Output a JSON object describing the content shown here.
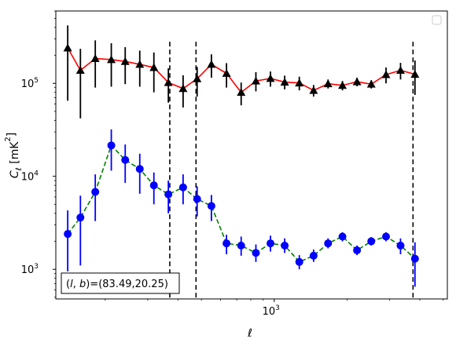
{
  "chart_data": {
    "type": "scatter",
    "xlabel": "ℓ",
    "ylabel": "Cℓ [mK²]",
    "x_scale": "log",
    "y_scale": "log",
    "xlim": [
      125,
      5200
    ],
    "ylim": [
      480,
      600000
    ],
    "x_ticks": [
      {
        "value": 1000,
        "label": "10",
        "exp": "3"
      }
    ],
    "y_ticks": [
      {
        "value": 1000,
        "label": "10",
        "exp": "3"
      },
      {
        "value": 10000,
        "label": "10",
        "exp": "4"
      },
      {
        "value": 100000,
        "label": "10",
        "exp": "5"
      }
    ],
    "annotation": "(l,b)=(83.49,20.25)",
    "vlines": [
      370,
      475,
      3750
    ],
    "legend_placement": "top-right",
    "series": [
      {
        "marker": "triangle",
        "marker_color": "#000000",
        "line_color": "#ff0000",
        "line_style": "solid",
        "errorbar_color": "#000000",
        "points": [
          {
            "x": 140,
            "y": 240000,
            "lo": 65000,
            "hi": 420000
          },
          {
            "x": 158,
            "y": 138000,
            "lo": 42000,
            "hi": 235000
          },
          {
            "x": 182,
            "y": 185000,
            "lo": 90000,
            "hi": 290000
          },
          {
            "x": 212,
            "y": 180000,
            "lo": 92000,
            "hi": 270000
          },
          {
            "x": 242,
            "y": 172000,
            "lo": 98000,
            "hi": 245000
          },
          {
            "x": 278,
            "y": 160000,
            "lo": 92000,
            "hi": 225000
          },
          {
            "x": 318,
            "y": 148000,
            "lo": 80000,
            "hi": 215000
          },
          {
            "x": 365,
            "y": 102000,
            "lo": 62000,
            "hi": 145000
          },
          {
            "x": 420,
            "y": 88000,
            "lo": 55000,
            "hi": 122000
          },
          {
            "x": 480,
            "y": 112000,
            "lo": 72000,
            "hi": 150000
          },
          {
            "x": 550,
            "y": 160000,
            "lo": 115000,
            "hi": 205000
          },
          {
            "x": 635,
            "y": 128000,
            "lo": 90000,
            "hi": 165000
          },
          {
            "x": 730,
            "y": 80000,
            "lo": 58000,
            "hi": 102000
          },
          {
            "x": 840,
            "y": 106000,
            "lo": 82000,
            "hi": 132000
          },
          {
            "x": 965,
            "y": 113000,
            "lo": 92000,
            "hi": 134000
          },
          {
            "x": 1105,
            "y": 103000,
            "lo": 86000,
            "hi": 121000
          },
          {
            "x": 1270,
            "y": 101000,
            "lo": 84000,
            "hi": 118000
          },
          {
            "x": 1455,
            "y": 84000,
            "lo": 72000,
            "hi": 96000
          },
          {
            "x": 1670,
            "y": 99000,
            "lo": 88000,
            "hi": 110000
          },
          {
            "x": 1915,
            "y": 95000,
            "lo": 84000,
            "hi": 106000
          },
          {
            "x": 2200,
            "y": 104000,
            "lo": 93000,
            "hi": 115000
          },
          {
            "x": 2520,
            "y": 98000,
            "lo": 88000,
            "hi": 108000
          },
          {
            "x": 2900,
            "y": 124000,
            "lo": 100000,
            "hi": 148000
          },
          {
            "x": 3330,
            "y": 138000,
            "lo": 110000,
            "hi": 166000
          },
          {
            "x": 3820,
            "y": 125000,
            "lo": 75000,
            "hi": 176000
          }
        ]
      },
      {
        "marker": "circle",
        "marker_color": "#0000ff",
        "line_color": "#008000",
        "line_style": "dashed",
        "errorbar_color": "#0000ff",
        "points": [
          {
            "x": 140,
            "y": 2400,
            "lo": 950,
            "hi": 4300
          },
          {
            "x": 158,
            "y": 3600,
            "lo": 1100,
            "hi": 6200
          },
          {
            "x": 182,
            "y": 6800,
            "lo": 3300,
            "hi": 10500
          },
          {
            "x": 212,
            "y": 21500,
            "lo": 11500,
            "hi": 32000
          },
          {
            "x": 242,
            "y": 15000,
            "lo": 8500,
            "hi": 22000
          },
          {
            "x": 278,
            "y": 12000,
            "lo": 6500,
            "hi": 17500
          },
          {
            "x": 318,
            "y": 8000,
            "lo": 5000,
            "hi": 11000
          },
          {
            "x": 365,
            "y": 6400,
            "lo": 4000,
            "hi": 9000
          },
          {
            "x": 420,
            "y": 7600,
            "lo": 5000,
            "hi": 10500
          },
          {
            "x": 480,
            "y": 5700,
            "lo": 3700,
            "hi": 7800
          },
          {
            "x": 550,
            "y": 4800,
            "lo": 3300,
            "hi": 6300
          },
          {
            "x": 635,
            "y": 1900,
            "lo": 1450,
            "hi": 2350
          },
          {
            "x": 730,
            "y": 1800,
            "lo": 1400,
            "hi": 2250
          },
          {
            "x": 840,
            "y": 1500,
            "lo": 1200,
            "hi": 1850
          },
          {
            "x": 965,
            "y": 1900,
            "lo": 1550,
            "hi": 2300
          },
          {
            "x": 1105,
            "y": 1800,
            "lo": 1500,
            "hi": 2150
          },
          {
            "x": 1270,
            "y": 1200,
            "lo": 1000,
            "hi": 1420
          },
          {
            "x": 1455,
            "y": 1400,
            "lo": 1200,
            "hi": 1630
          },
          {
            "x": 1670,
            "y": 1900,
            "lo": 1680,
            "hi": 2150
          },
          {
            "x": 1915,
            "y": 2250,
            "lo": 2000,
            "hi": 2500
          },
          {
            "x": 2200,
            "y": 1600,
            "lo": 1420,
            "hi": 1800
          },
          {
            "x": 2520,
            "y": 2000,
            "lo": 1800,
            "hi": 2220
          },
          {
            "x": 2900,
            "y": 2250,
            "lo": 2000,
            "hi": 2500
          },
          {
            "x": 3330,
            "y": 1800,
            "lo": 1450,
            "hi": 2150
          },
          {
            "x": 3820,
            "y": 1300,
            "lo": 650,
            "hi": 1950
          }
        ]
      }
    ]
  }
}
